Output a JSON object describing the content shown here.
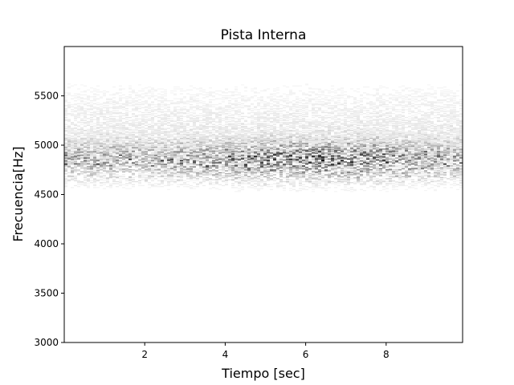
{
  "chart_data": {
    "type": "heatmap",
    "title": "Pista Interna",
    "xlabel": "Tiempo [sec]",
    "ylabel": "Frecuencia[Hz]",
    "xlim": [
      0.0,
      9.9
    ],
    "ylim": [
      3000,
      6000
    ],
    "xticks": [
      2,
      4,
      6,
      8
    ],
    "xtick_labels": [
      "2",
      "4",
      "6",
      "8"
    ],
    "yticks": [
      3000,
      3500,
      4000,
      4500,
      5000,
      5500
    ],
    "ytick_labels": [
      "3000",
      "3500",
      "4000",
      "4500",
      "5000",
      "5500"
    ],
    "colormap": "grayscale (white = low, black = high)",
    "background_color": "#ffffff",
    "band_center_hz": 4850,
    "band_range_hz": [
      4600,
      5100
    ],
    "grid": false,
    "legend": "none"
  }
}
